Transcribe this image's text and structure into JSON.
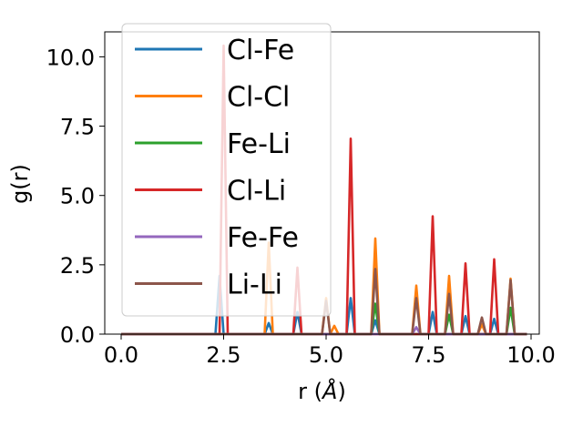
{
  "chart_data": {
    "type": "line",
    "xlabel_prefix": "r (",
    "xlabel_symbol": "Å",
    "xlabel_suffix": ")",
    "ylabel": "g(r)",
    "xlim": [
      -0.4,
      10.2
    ],
    "ylim": [
      0,
      10.9
    ],
    "xticks": [
      0.0,
      2.5,
      5.0,
      7.5,
      10.0
    ],
    "xtick_labels": [
      "0.0",
      "2.5",
      "5.0",
      "7.5",
      "10.0"
    ],
    "yticks": [
      0.0,
      2.5,
      5.0,
      7.5,
      10.0
    ],
    "ytick_labels": [
      "0.0",
      "2.5",
      "5.0",
      "7.5",
      "10.0"
    ],
    "grid": false,
    "legend_position": "upper-left",
    "x": [
      0.0,
      0.1,
      0.2,
      0.3,
      0.4,
      0.5,
      0.6,
      0.7,
      0.8,
      0.9,
      1.0,
      1.1,
      1.2,
      1.3,
      1.4,
      1.5,
      1.6,
      1.7,
      1.8,
      1.9,
      2.0,
      2.1,
      2.2,
      2.3,
      2.4,
      2.5,
      2.6,
      2.7,
      2.8,
      2.9,
      3.0,
      3.1,
      3.2,
      3.3,
      3.4,
      3.5,
      3.6,
      3.7,
      3.8,
      3.9,
      4.0,
      4.1,
      4.2,
      4.3,
      4.4,
      4.5,
      4.6,
      4.7,
      4.8,
      4.9,
      5.0,
      5.1,
      5.2,
      5.3,
      5.4,
      5.5,
      5.6,
      5.7,
      5.8,
      5.9,
      6.0,
      6.1,
      6.2,
      6.3,
      6.4,
      6.5,
      6.6,
      6.7,
      6.8,
      6.9,
      7.0,
      7.1,
      7.2,
      7.3,
      7.4,
      7.5,
      7.6,
      7.7,
      7.8,
      7.9,
      8.0,
      8.1,
      8.2,
      8.3,
      8.4,
      8.5,
      8.6,
      8.7,
      8.8,
      8.9,
      9.0,
      9.1,
      9.2,
      9.3,
      9.4,
      9.5,
      9.6,
      9.7,
      9.8,
      9.9
    ],
    "series": [
      {
        "name": "Cl-Fe",
        "color": "#1f77b4",
        "values": [
          0,
          0,
          0,
          0,
          0,
          0,
          0,
          0,
          0,
          0,
          0,
          0,
          0,
          0,
          0,
          0,
          0,
          0,
          0,
          0,
          0,
          0,
          0,
          0,
          2.1,
          0,
          0,
          0,
          0,
          0,
          0,
          0,
          0,
          0,
          0,
          0,
          0.4,
          0,
          0,
          0,
          0,
          0,
          0,
          0.8,
          0,
          0,
          0,
          0,
          0,
          0,
          0,
          0,
          0,
          0,
          0,
          0,
          1.3,
          0,
          0,
          0,
          0,
          0,
          0.5,
          0,
          0,
          0,
          0,
          0,
          0,
          0,
          0,
          0,
          0,
          0,
          0,
          0,
          0.8,
          0,
          0,
          0,
          0,
          0,
          0,
          0,
          0.65,
          0,
          0,
          0,
          0,
          0,
          0,
          0.55,
          0,
          0,
          0,
          0,
          0,
          0,
          0,
          0
        ]
      },
      {
        "name": "Cl-Cl",
        "color": "#ff7f0e",
        "values": [
          0,
          0,
          0,
          0,
          0,
          0,
          0,
          0,
          0,
          0,
          0,
          0,
          0,
          0,
          0,
          0,
          0,
          0,
          0,
          0,
          0,
          0,
          0,
          0,
          0,
          0,
          0,
          0,
          0,
          0,
          0,
          0,
          0,
          0,
          0,
          0,
          3.3,
          0,
          0,
          0,
          0,
          0,
          0,
          0,
          0,
          0,
          0,
          0,
          0,
          0,
          1.3,
          0,
          0.3,
          0,
          0,
          0,
          0,
          0,
          0,
          0,
          0,
          0,
          3.45,
          0,
          0,
          0,
          0,
          0,
          0,
          0,
          0,
          0,
          1.75,
          0,
          0,
          0,
          0,
          0,
          0,
          0,
          2.1,
          0,
          0,
          0,
          0,
          0,
          0,
          0,
          0.35,
          0,
          0,
          0,
          0,
          0,
          0,
          2.0,
          0,
          0,
          0,
          0
        ]
      },
      {
        "name": "Fe-Li",
        "color": "#2ca02c",
        "values": [
          0,
          0,
          0,
          0,
          0,
          0,
          0,
          0,
          0,
          0,
          0,
          0,
          0,
          0,
          0,
          0,
          0,
          0,
          0,
          0,
          0,
          0,
          0,
          0,
          0,
          0,
          0,
          0,
          0,
          0,
          0,
          0,
          0,
          0,
          0,
          0,
          0,
          0,
          0,
          0,
          0,
          0,
          0,
          0,
          0,
          0,
          0,
          0,
          0,
          0,
          0,
          0,
          0,
          0,
          0,
          0,
          0,
          0,
          0,
          0,
          0,
          0,
          1.1,
          0,
          0,
          0,
          0,
          0,
          0,
          0,
          0,
          0,
          0,
          0,
          0,
          0,
          0,
          0,
          0,
          0,
          0.7,
          0,
          0,
          0,
          0,
          0,
          0,
          0,
          0,
          0,
          0,
          0,
          0,
          0,
          0,
          0.95,
          0,
          0,
          0,
          0
        ]
      },
      {
        "name": "Cl-Li",
        "color": "#d62728",
        "values": [
          0,
          0,
          0,
          0,
          0,
          0,
          0,
          0,
          0,
          0,
          0,
          0,
          0,
          0,
          0,
          0,
          0,
          0,
          0,
          0,
          0,
          0,
          0,
          0,
          0,
          10.4,
          0,
          0,
          0,
          0,
          0,
          0,
          0,
          0,
          0,
          0,
          0,
          0,
          0,
          0,
          0,
          0,
          0,
          2.4,
          0,
          0,
          0,
          0,
          0,
          0,
          0,
          0,
          0,
          0,
          0,
          0,
          7.05,
          0,
          0,
          0,
          0,
          0,
          0,
          0,
          0,
          0,
          0,
          0,
          0,
          0,
          0,
          0,
          0,
          0,
          0,
          0,
          4.25,
          0,
          0,
          0,
          0,
          0,
          0,
          0,
          2.55,
          0,
          0,
          0,
          0,
          0,
          0,
          2.7,
          0,
          0,
          0,
          0,
          0,
          0,
          0,
          0
        ]
      },
      {
        "name": "Fe-Fe",
        "color": "#9467bd",
        "values": [
          0,
          0,
          0,
          0,
          0,
          0,
          0,
          0,
          0,
          0,
          0,
          0,
          0,
          0,
          0,
          0,
          0,
          0,
          0,
          0,
          0,
          0,
          0,
          0,
          0,
          0,
          0,
          0,
          0,
          0,
          0,
          0,
          0,
          0,
          0,
          0,
          0,
          0,
          0,
          0,
          0,
          0,
          0,
          0,
          0,
          0,
          0,
          0,
          0,
          0,
          0,
          0,
          0,
          0,
          0,
          0,
          0,
          0,
          0,
          0,
          0,
          0,
          0,
          0,
          0,
          0,
          0,
          0,
          0,
          0,
          0,
          0,
          0.25,
          0,
          0,
          0,
          0,
          0,
          0,
          0,
          0,
          0,
          0,
          0,
          0,
          0,
          0,
          0,
          0,
          0,
          0,
          0,
          0,
          0,
          0,
          0,
          0,
          0,
          0,
          0
        ]
      },
      {
        "name": "Li-Li",
        "color": "#8c564b",
        "values": [
          0,
          0,
          0,
          0,
          0,
          0,
          0,
          0,
          0,
          0,
          0,
          0,
          0,
          0,
          0,
          0,
          0,
          0,
          0,
          0,
          0,
          0,
          0,
          0,
          0,
          0,
          0,
          0,
          0,
          0,
          0,
          0,
          0,
          0,
          0,
          0,
          0,
          0,
          0,
          0,
          0,
          0,
          0,
          0,
          0,
          0,
          0,
          0,
          0,
          0,
          1.2,
          0,
          0,
          0,
          0,
          0,
          0,
          0,
          0,
          0,
          0,
          0,
          2.35,
          0,
          0,
          0,
          0,
          0,
          0,
          0,
          0,
          0,
          1.3,
          0,
          0,
          0,
          0,
          0,
          0,
          0,
          1.45,
          0,
          0,
          0,
          0,
          0,
          0,
          0,
          0.6,
          0,
          0,
          0,
          0,
          0,
          0,
          1.95,
          0,
          0,
          0,
          0
        ]
      }
    ]
  }
}
